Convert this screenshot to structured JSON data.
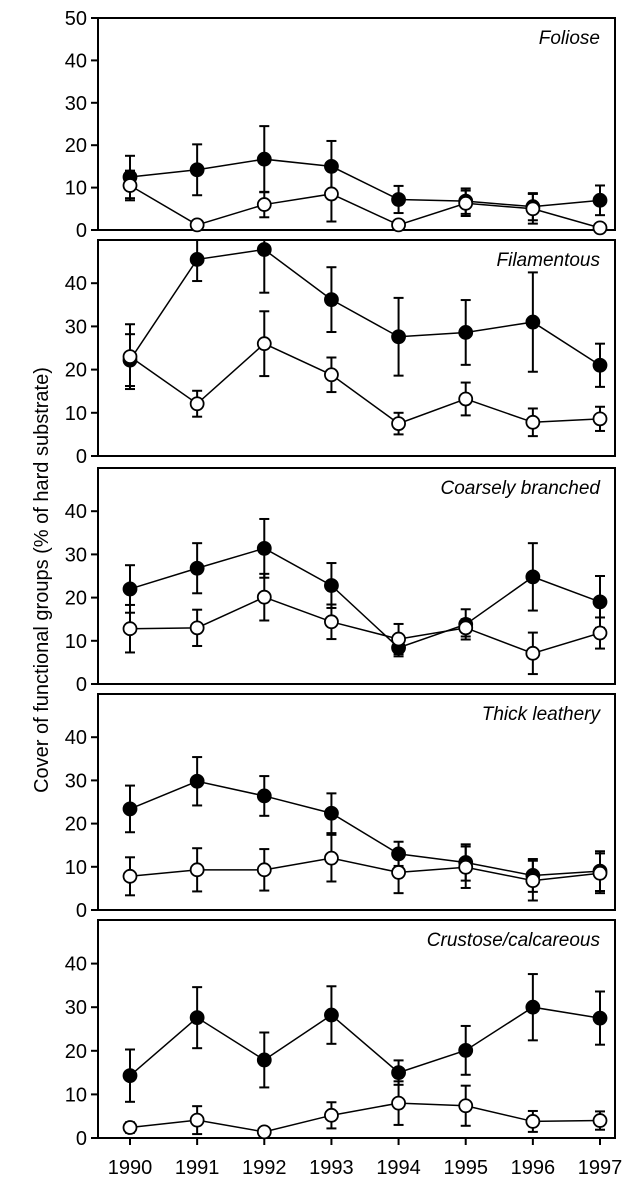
{
  "chart_data": {
    "type": "line",
    "ylabel": "Cover of functional groups (% of hard substrate)",
    "xlabel": "",
    "x": [
      "1990",
      "1991",
      "1992",
      "1993",
      "1994",
      "1995",
      "1996",
      "1997"
    ],
    "grid": false,
    "legend": "none",
    "marker_colors": {
      "filled": "#000000",
      "open": "#ffffff"
    },
    "panels": [
      {
        "title": "Foliose",
        "ylim": [
          0,
          50
        ],
        "yticks": [
          0,
          10,
          20,
          30,
          40,
          50
        ],
        "series": [
          {
            "marker": "filled",
            "values": [
              12.5,
              14.2,
              16.7,
              15.0,
              7.2,
              6.8,
              5.5,
              7.0
            ],
            "errors": [
              5.0,
              6.0,
              7.8,
              6.0,
              3.2,
              3.0,
              3.2,
              3.5
            ]
          },
          {
            "marker": "open",
            "values": [
              10.5,
              1.2,
              6.0,
              8.5,
              1.2,
              6.3,
              5.0,
              0.5
            ],
            "errors": [
              3.5,
              0.6,
              3.0,
              6.5,
              0.6,
              3.0,
              3.5,
              0.4
            ]
          }
        ]
      },
      {
        "title": "Filamentous",
        "ylim": [
          0,
          50
        ],
        "yticks": [
          0,
          10,
          20,
          30,
          40
        ],
        "series": [
          {
            "marker": "filled",
            "values": [
              22.2,
              45.5,
              47.8,
              36.2,
              27.6,
              28.6,
              31.0,
              21.0
            ],
            "errors": [
              6.0,
              5.0,
              10.0,
              7.5,
              9.0,
              7.5,
              11.5,
              5.0
            ]
          },
          {
            "marker": "open",
            "values": [
              23.0,
              12.1,
              26.0,
              18.8,
              7.5,
              13.2,
              7.8,
              8.6
            ],
            "errors": [
              7.5,
              3.0,
              7.5,
              4.0,
              2.5,
              3.8,
              3.2,
              2.8
            ]
          }
        ]
      },
      {
        "title": "Coarsely branched",
        "ylim": [
          0,
          50
        ],
        "yticks": [
          0,
          10,
          20,
          30,
          40
        ],
        "series": [
          {
            "marker": "filled",
            "values": [
              22.0,
              26.8,
              31.4,
              22.8,
              8.4,
              13.8,
              24.8,
              19.0
            ],
            "errors": [
              5.5,
              5.8,
              6.8,
              5.2,
              2.0,
              3.5,
              7.8,
              6.0
            ]
          },
          {
            "marker": "open",
            "values": [
              12.8,
              13.0,
              20.1,
              14.4,
              10.4,
              13.0,
              7.1,
              11.8
            ],
            "errors": [
              5.5,
              4.2,
              5.4,
              4.0,
              3.5,
              2.0,
              4.8,
              3.6
            ]
          }
        ]
      },
      {
        "title": "Thick leathery",
        "ylim": [
          0,
          50
        ],
        "yticks": [
          0,
          10,
          20,
          30,
          40
        ],
        "series": [
          {
            "marker": "filled",
            "values": [
              23.4,
              29.8,
              26.4,
              22.4,
              13.0,
              11.0,
              8.0,
              9.0
            ],
            "errors": [
              5.4,
              5.6,
              4.6,
              4.6,
              2.8,
              4.2,
              3.8,
              4.6
            ]
          },
          {
            "marker": "open",
            "values": [
              7.8,
              9.3,
              9.3,
              12.0,
              8.7,
              9.9,
              6.8,
              8.5
            ],
            "errors": [
              4.4,
              5.0,
              4.8,
              5.4,
              4.8,
              4.8,
              4.6,
              4.6
            ]
          }
        ]
      },
      {
        "title": "Crustose/calcareous",
        "ylim": [
          0,
          50
        ],
        "yticks": [
          0,
          10,
          20,
          30,
          40
        ],
        "series": [
          {
            "marker": "filled",
            "values": [
              14.3,
              27.6,
              17.9,
              28.2,
              15.0,
              20.1,
              30.0,
              27.5
            ],
            "errors": [
              6.0,
              7.0,
              6.3,
              6.6,
              2.8,
              5.6,
              7.6,
              6.1
            ]
          },
          {
            "marker": "open",
            "values": [
              2.4,
              4.1,
              1.4,
              5.2,
              8.0,
              7.4,
              3.8,
              4.0
            ],
            "errors": [
              1.2,
              3.2,
              0.8,
              3.0,
              5.0,
              4.6,
              2.4,
              2.1
            ]
          }
        ]
      }
    ]
  }
}
